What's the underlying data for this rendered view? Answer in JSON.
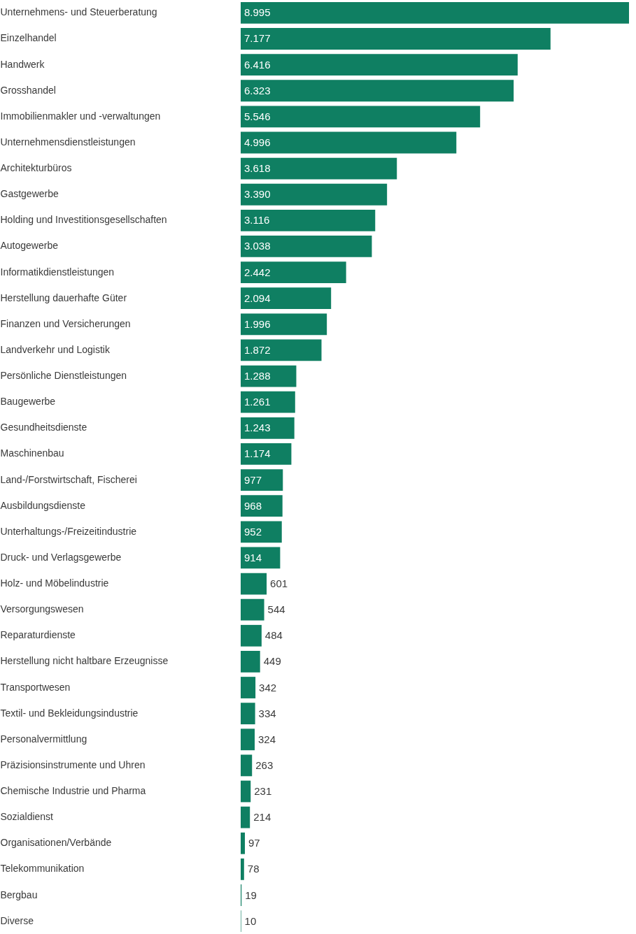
{
  "chart_data": {
    "type": "bar",
    "orientation": "horizontal",
    "tick_labels": "y",
    "grid": false,
    "categories": [
      "Unternehmens- und Steuerberatung",
      "Einzelhandel",
      "Handwerk",
      "Grosshandel",
      "Immobilienmakler und -verwaltungen",
      "Unternehmensdienstleistungen",
      "Architekturbüros",
      "Gastgewerbe",
      "Holding und Investitionsgesellschaften",
      "Autogewerbe",
      "Informatikdienstleistungen",
      "Herstellung dauerhafte Güter",
      "Finanzen und Versicherungen",
      "Landverkehr und Logistik",
      "Persönliche Dienstleistungen",
      "Baugewerbe",
      "Gesundheitsdienste",
      "Maschinenbau",
      "Land-/Forstwirtschaft, Fischerei",
      "Ausbildungsdienste",
      "Unterhaltungs-/Freizeitindustrie",
      "Druck- und Verlagsgewerbe",
      "Holz- und Möbelindustrie",
      "Versorgungswesen",
      "Reparaturdienste",
      "Herstellung nicht haltbare Erzeugnisse",
      "Transportwesen",
      "Textil- und Bekleidungsindustrie",
      "Personalvermittlung",
      "Präzisionsinstrumente und Uhren",
      "Chemische Industrie und Pharma",
      "Sozialdienst",
      "Organisationen/Verbände",
      "Telekommunikation",
      "Bergbau",
      "Diverse"
    ],
    "values": [
      8995,
      7177,
      6416,
      6323,
      5546,
      4996,
      3618,
      3390,
      3116,
      3038,
      2442,
      2094,
      1996,
      1872,
      1288,
      1261,
      1243,
      1174,
      977,
      968,
      952,
      914,
      601,
      544,
      484,
      449,
      342,
      334,
      324,
      263,
      231,
      214,
      97,
      78,
      19,
      10
    ],
    "value_labels": [
      "8.995",
      "7.177",
      "6.416",
      "6.323",
      "5.546",
      "4.996",
      "3.618",
      "3.390",
      "3.116",
      "3.038",
      "2.442",
      "2.094",
      "1.996",
      "1.872",
      "1.288",
      "1.261",
      "1.243",
      "1.174",
      "977",
      "968",
      "952",
      "914",
      "601",
      "544",
      "484",
      "449",
      "342",
      "334",
      "324",
      "263",
      "231",
      "214",
      "97",
      "78",
      "19",
      "10"
    ],
    "xlim": [
      0,
      8995
    ],
    "color": "#0f7f62"
  }
}
